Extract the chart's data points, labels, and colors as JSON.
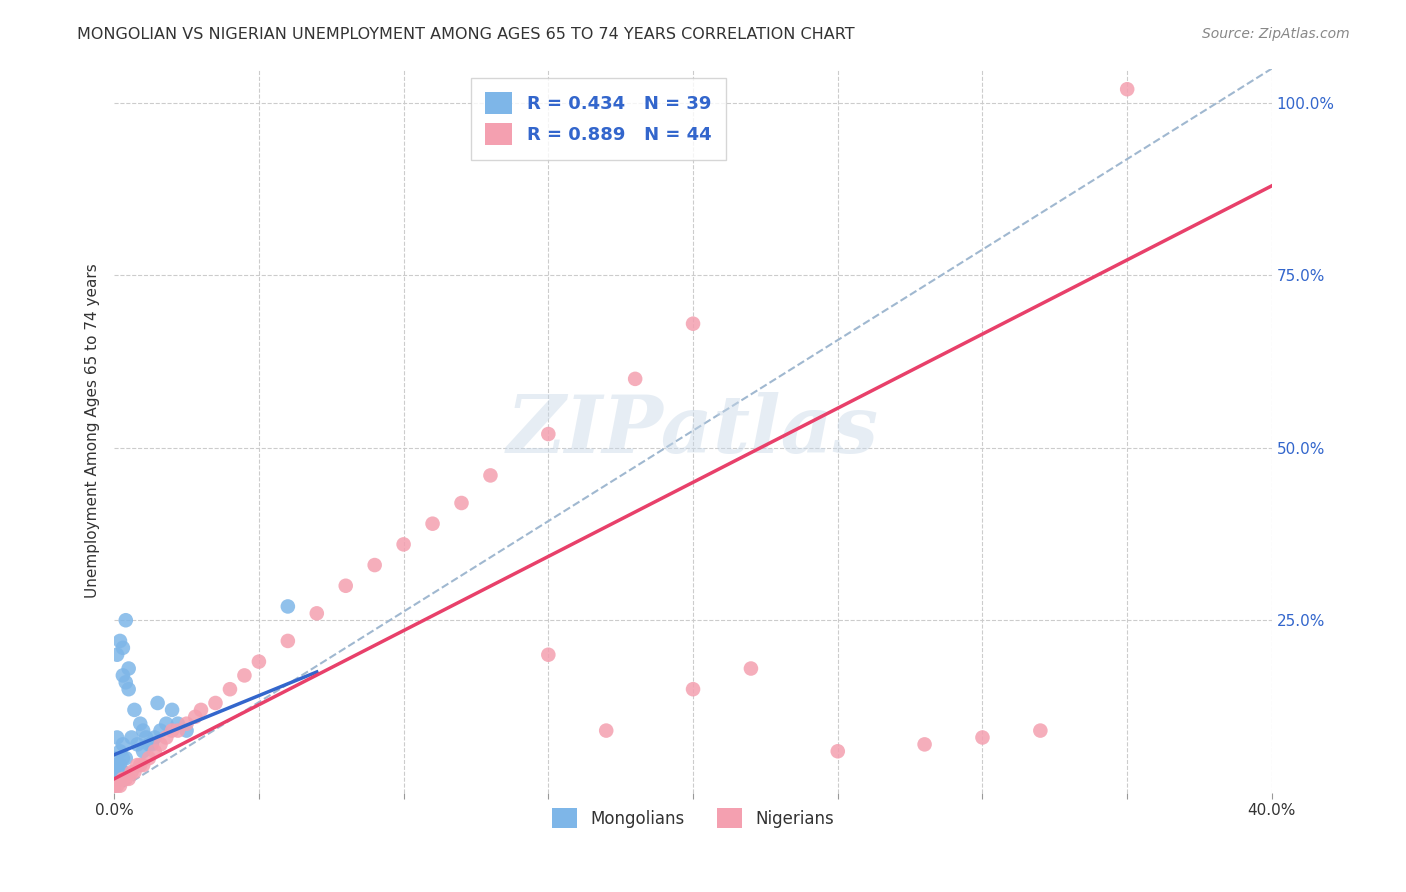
{
  "title": "MONGOLIAN VS NIGERIAN UNEMPLOYMENT AMONG AGES 65 TO 74 YEARS CORRELATION CHART",
  "source": "Source: ZipAtlas.com",
  "ylabel": "Unemployment Among Ages 65 to 74 years",
  "xlim": [
    0.0,
    0.4
  ],
  "ylim": [
    0.0,
    1.05
  ],
  "mongolian_R": 0.434,
  "mongolian_N": 39,
  "nigerian_R": 0.889,
  "nigerian_N": 44,
  "mongolian_color": "#7EB6E8",
  "nigerian_color": "#F4A0B0",
  "mongolian_line_color": "#3366CC",
  "nigerian_line_color": "#E8406A",
  "diagonal_color": "#A0B8D0",
  "watermark_text": "ZIPatlas",
  "mongo_x": [
    0.0,
    0.0,
    0.001,
    0.001,
    0.002,
    0.002,
    0.003,
    0.003,
    0.004,
    0.005,
    0.006,
    0.007,
    0.008,
    0.009,
    0.01,
    0.01,
    0.011,
    0.012,
    0.013,
    0.014,
    0.015,
    0.016,
    0.018,
    0.02,
    0.022,
    0.025,
    0.003,
    0.002,
    0.001,
    0.005,
    0.003,
    0.004,
    0.003,
    0.002,
    0.001,
    0.06,
    0.0,
    0.001,
    0.004
  ],
  "mongo_y": [
    0.05,
    0.03,
    0.08,
    0.04,
    0.06,
    0.02,
    0.07,
    0.03,
    0.05,
    0.15,
    0.08,
    0.12,
    0.07,
    0.1,
    0.09,
    0.06,
    0.08,
    0.07,
    0.07,
    0.08,
    0.13,
    0.09,
    0.1,
    0.12,
    0.1,
    0.09,
    0.21,
    0.22,
    0.2,
    0.18,
    0.17,
    0.16,
    0.05,
    0.04,
    0.03,
    0.27,
    0.04,
    0.02,
    0.25
  ],
  "nigeria_x": [
    0.0,
    0.001,
    0.002,
    0.003,
    0.004,
    0.005,
    0.006,
    0.007,
    0.008,
    0.009,
    0.01,
    0.012,
    0.014,
    0.016,
    0.018,
    0.02,
    0.022,
    0.025,
    0.028,
    0.03,
    0.035,
    0.04,
    0.045,
    0.05,
    0.06,
    0.07,
    0.08,
    0.09,
    0.1,
    0.11,
    0.12,
    0.13,
    0.15,
    0.17,
    0.2,
    0.22,
    0.25,
    0.28,
    0.3,
    0.32,
    0.15,
    0.18,
    0.2,
    0.35
  ],
  "nigeria_y": [
    0.01,
    0.01,
    0.01,
    0.02,
    0.02,
    0.02,
    0.03,
    0.03,
    0.04,
    0.04,
    0.04,
    0.05,
    0.06,
    0.07,
    0.08,
    0.09,
    0.09,
    0.1,
    0.11,
    0.12,
    0.13,
    0.15,
    0.17,
    0.19,
    0.22,
    0.26,
    0.3,
    0.33,
    0.36,
    0.39,
    0.42,
    0.46,
    0.2,
    0.09,
    0.15,
    0.18,
    0.06,
    0.07,
    0.08,
    0.09,
    0.52,
    0.6,
    0.68,
    1.02
  ],
  "mongo_line_x0": 0.0,
  "mongo_line_x1": 0.07,
  "mongo_line_y0": 0.055,
  "mongo_line_y1": 0.175,
  "nigeria_line_x0": 0.0,
  "nigeria_line_x1": 0.4,
  "nigeria_line_y0": 0.02,
  "nigeria_line_y1": 0.88,
  "diag_line_x0": 0.0,
  "diag_line_x1": 0.4,
  "diag_line_y0": 0.0,
  "diag_line_y1": 1.05
}
